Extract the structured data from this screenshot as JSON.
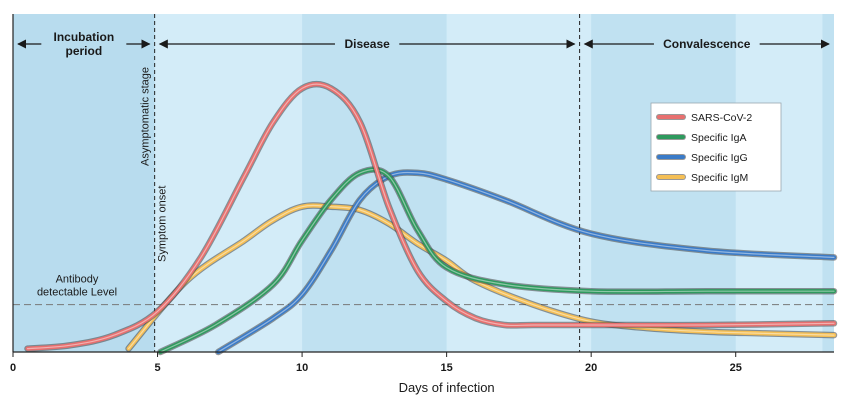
{
  "chart_data": {
    "type": "line",
    "title": "",
    "xlabel": "Days of infection",
    "ylabel": "",
    "xlim": [
      0,
      28.4
    ],
    "ylim": [
      0,
      1
    ],
    "x_ticks": [
      0,
      5,
      10,
      15,
      20,
      25
    ],
    "grid": false,
    "legend_position": "right",
    "phases": [
      {
        "label": "Incubation period",
        "label_lines": [
          "Incubation",
          "period"
        ],
        "start": 0,
        "end": 4.9
      },
      {
        "label": "Disease",
        "label_lines": [
          "Disease"
        ],
        "start": 4.9,
        "end": 19.6
      },
      {
        "label": "Convalescence",
        "label_lines": [
          "Convalescence"
        ],
        "start": 19.6,
        "end": 28.4
      }
    ],
    "vertical_markers": [
      {
        "x": 4.9,
        "labels": [
          "Asymptomatic stage",
          "Symptom onset"
        ]
      },
      {
        "x": 19.6,
        "labels": []
      }
    ],
    "threshold": {
      "y": 0.14,
      "label_lines": [
        "Antibody",
        "detectable Level"
      ]
    },
    "series": [
      {
        "name": "SARS-CoV-2",
        "color": "#e8706f",
        "x": [
          0.5,
          2,
          3.5,
          5,
          6.5,
          8,
          9,
          10,
          11,
          12,
          13,
          14,
          15,
          16,
          17,
          18,
          20,
          24,
          28.4
        ],
        "y": [
          0.01,
          0.02,
          0.05,
          0.12,
          0.28,
          0.52,
          0.68,
          0.78,
          0.78,
          0.68,
          0.43,
          0.24,
          0.15,
          0.1,
          0.08,
          0.08,
          0.08,
          0.08,
          0.085
        ]
      },
      {
        "name": "Specific IgA",
        "color": "#2e9a5e",
        "x": [
          5.1,
          7,
          9,
          10,
          11,
          12,
          13,
          14,
          15,
          17,
          20,
          24,
          28.4
        ],
        "y": [
          0.0,
          0.08,
          0.2,
          0.33,
          0.45,
          0.53,
          0.52,
          0.36,
          0.25,
          0.2,
          0.18,
          0.18,
          0.18
        ]
      },
      {
        "name": "Specific IgG",
        "color": "#3a7bc8",
        "x": [
          7.1,
          9,
          10,
          11,
          12,
          13,
          14,
          15,
          17,
          20,
          24,
          28.4
        ],
        "y": [
          0.0,
          0.1,
          0.17,
          0.3,
          0.45,
          0.52,
          0.53,
          0.51,
          0.45,
          0.35,
          0.3,
          0.28
        ]
      },
      {
        "name": "Specific IgM",
        "color": "#f5bf55",
        "x": [
          4.0,
          6,
          8,
          9,
          10,
          11,
          12,
          13,
          14,
          15,
          16,
          18,
          20,
          22,
          24,
          26,
          28.4
        ],
        "y": [
          0.01,
          0.21,
          0.33,
          0.39,
          0.43,
          0.43,
          0.42,
          0.38,
          0.32,
          0.27,
          0.21,
          0.14,
          0.09,
          0.07,
          0.06,
          0.055,
          0.05
        ]
      }
    ]
  }
}
